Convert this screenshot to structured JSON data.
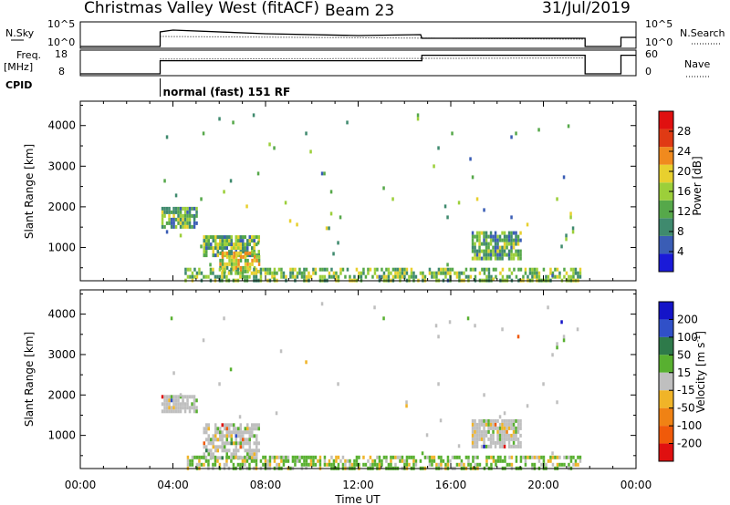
{
  "header": {
    "station": "Christmas Valley West (fitACF)",
    "beam": "Beam 23",
    "date": "31/Jul/2019"
  },
  "chart_data": [
    {
      "type": "line",
      "panel": "noise",
      "left_label": "N.Sky",
      "left_ticks": [
        "10^5",
        "10^0"
      ],
      "right_label": "N.Search",
      "right_ticks": [
        "10^5",
        "10^0"
      ],
      "series": [
        {
          "style": "solid",
          "x": [
            0,
            3.45,
            3.45,
            4,
            8,
            12,
            14.7,
            14.75,
            20,
            21.8,
            21.8,
            23.35,
            23.35,
            24
          ],
          "y": [
            0,
            0,
            1.6,
            1.8,
            1.4,
            1.2,
            1.3,
            0.9,
            0.9,
            0.9,
            0,
            0,
            1.0,
            1.0
          ]
        },
        {
          "style": "dotted",
          "x": [
            3.45,
            21.8
          ],
          "y": [
            1.1,
            0.8
          ]
        }
      ]
    },
    {
      "type": "line",
      "panel": "frequency",
      "left_label": "Freq.",
      "left_unit": "[MHz]",
      "left_ticks": [
        "18",
        "8"
      ],
      "right_label": "Nave",
      "right_ticks": [
        "60",
        "0"
      ],
      "series": [
        {
          "style": "solid",
          "x": [
            0,
            3.45,
            3.45,
            12.65,
            12.65,
            14.75,
            14.75,
            21.8,
            21.8,
            23.35,
            23.35,
            24
          ],
          "y": [
            0,
            0,
            12,
            12,
            12,
            12,
            17,
            17,
            0,
            0,
            17,
            17
          ]
        },
        {
          "style": "dotted",
          "x": [
            3.45,
            21.8
          ],
          "y": [
            13.5,
            14.5
          ]
        }
      ]
    },
    {
      "type": "line",
      "panel": "cpid",
      "label": "CPID",
      "annotation": "normal (fast) 151 RF",
      "marks": [
        3.45
      ]
    },
    {
      "type": "heatmap",
      "panel": "power",
      "ylabel": "Slant Range [km]",
      "y_ticks": [
        1000,
        2000,
        3000,
        4000
      ],
      "ylim": [
        180,
        4600
      ],
      "xlim": [
        0,
        24
      ],
      "colorbar_label": "Power [dB]",
      "colorbar_ticks": [
        4,
        8,
        12,
        16,
        20,
        24,
        28
      ],
      "colorbar_range": [
        0,
        32
      ],
      "colors": [
        "#1a1ad8",
        "#3a5db5",
        "#3f8a6e",
        "#56a84a",
        "#9ccf3a",
        "#e8d02e",
        "#f08a1e",
        "#e03a14",
        "#e01010"
      ],
      "regions": [
        {
          "x": [
            3.5,
            5.0
          ],
          "y": [
            1550,
            2000
          ],
          "level": 12,
          "density": 0.8
        },
        {
          "x": [
            5.3,
            7.7
          ],
          "y": [
            800,
            1300
          ],
          "level": 13,
          "density": 0.8
        },
        {
          "x": [
            6.0,
            7.7
          ],
          "y": [
            450,
            900
          ],
          "level": 17,
          "density": 0.7
        },
        {
          "x": [
            16.9,
            19.0
          ],
          "y": [
            700,
            1400
          ],
          "level": 12,
          "density": 0.8
        },
        {
          "x": [
            4.5,
            21.6
          ],
          "y": [
            180,
            500
          ],
          "level": 14,
          "density": 0.55
        },
        {
          "x": [
            3.5,
            21.6
          ],
          "y": [
            180,
            4300
          ],
          "level": 12,
          "density": 0.006
        }
      ]
    },
    {
      "type": "heatmap",
      "panel": "velocity",
      "xlabel": "Time UT",
      "x_ticks": [
        "00:00",
        "04:00",
        "08:00",
        "12:00",
        "16:00",
        "20:00",
        "00:00"
      ],
      "ylabel": "Slant Range [km]",
      "y_ticks": [
        1000,
        2000,
        3000,
        4000
      ],
      "ylim": [
        180,
        4600
      ],
      "xlim": [
        0,
        24
      ],
      "colorbar_label": "Velocity [m s",
      "colorbar_unit_sup": "-1",
      "colorbar_unit_end": "]",
      "colorbar_ticks": [
        "200",
        "100",
        "50",
        "15",
        "-15",
        "-50",
        "-100",
        "-200"
      ],
      "colors": [
        "#1414c8",
        "#3050c8",
        "#2e7a4a",
        "#58b030",
        "#bfbfbf",
        "#f0b428",
        "#f08214",
        "#f05a0a",
        "#e01010"
      ],
      "regions": [
        {
          "x": [
            3.5,
            5.0
          ],
          "y": [
            1550,
            2000
          ],
          "level": 0,
          "density": 0.8
        },
        {
          "x": [
            5.3,
            7.7
          ],
          "y": [
            450,
            1300
          ],
          "level": 0,
          "density": 0.7
        },
        {
          "x": [
            16.9,
            19.0
          ],
          "y": [
            700,
            1400
          ],
          "level": 0,
          "density": 0.8
        },
        {
          "x": [
            4.5,
            21.6
          ],
          "y": [
            180,
            500
          ],
          "level": 30,
          "density": 0.55
        },
        {
          "x": [
            3.5,
            21.6
          ],
          "y": [
            180,
            4300
          ],
          "level": 0,
          "density": 0.006
        }
      ]
    }
  ]
}
